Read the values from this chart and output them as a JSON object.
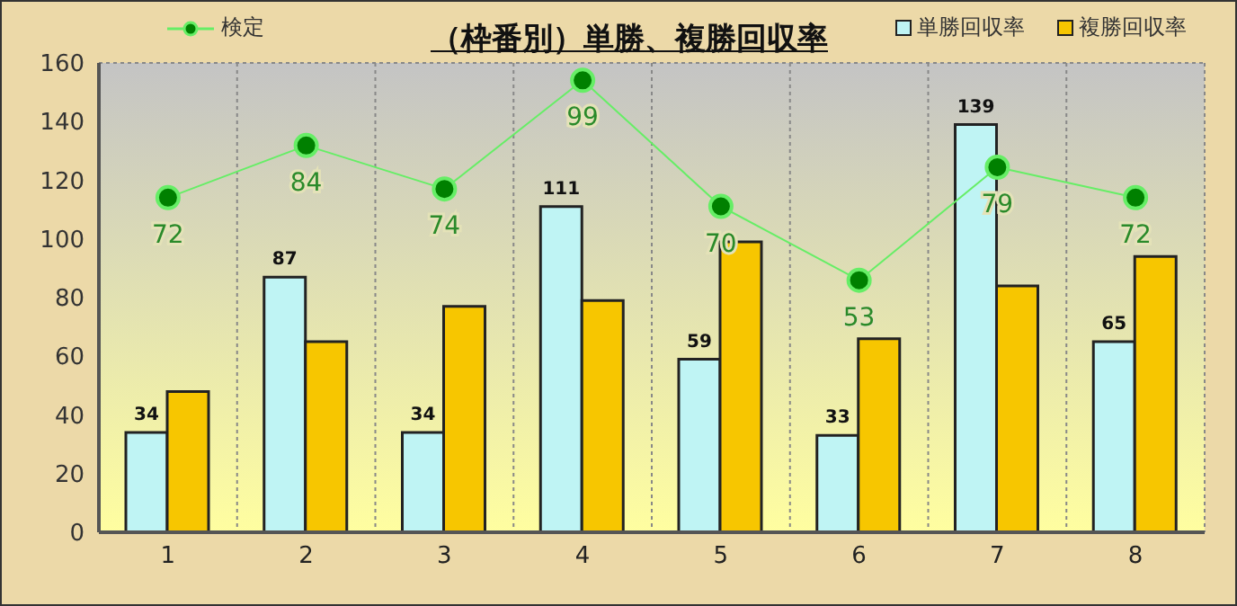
{
  "chart_data": {
    "type": "bar",
    "title": "（枠番別）単勝、複勝回収率",
    "categories": [
      "1",
      "2",
      "3",
      "4",
      "5",
      "6",
      "7",
      "8"
    ],
    "series": [
      {
        "name": "単勝回収率",
        "color": "#bff4f4",
        "values": [
          34,
          87,
          34,
          111,
          59,
          33,
          139,
          65
        ],
        "value_labels": [
          "34",
          "87",
          "34",
          "111",
          "59",
          "33",
          "139",
          "65"
        ]
      },
      {
        "name": "複勝回収率",
        "color": "#f7c600",
        "values": [
          48,
          65,
          77,
          79,
          99,
          66,
          84,
          94
        ]
      },
      {
        "name": "検定",
        "type": "line",
        "axis": "y2",
        "color": "#66ee66",
        "values": [
          72,
          84,
          74,
          99,
          70,
          53,
          79,
          72
        ],
        "value_labels": [
          "72",
          "84",
          "74",
          "99",
          "70",
          "53",
          "79",
          "72"
        ]
      }
    ],
    "ylim": [
      0,
      160
    ],
    "yticks": [
      0,
      20,
      40,
      60,
      80,
      100,
      120,
      140,
      160
    ],
    "y2lim": [
      -5,
      103
    ],
    "tick_labels": "xy",
    "grid": true,
    "legend": "top",
    "marker": "circle",
    "line_style": "solid"
  }
}
